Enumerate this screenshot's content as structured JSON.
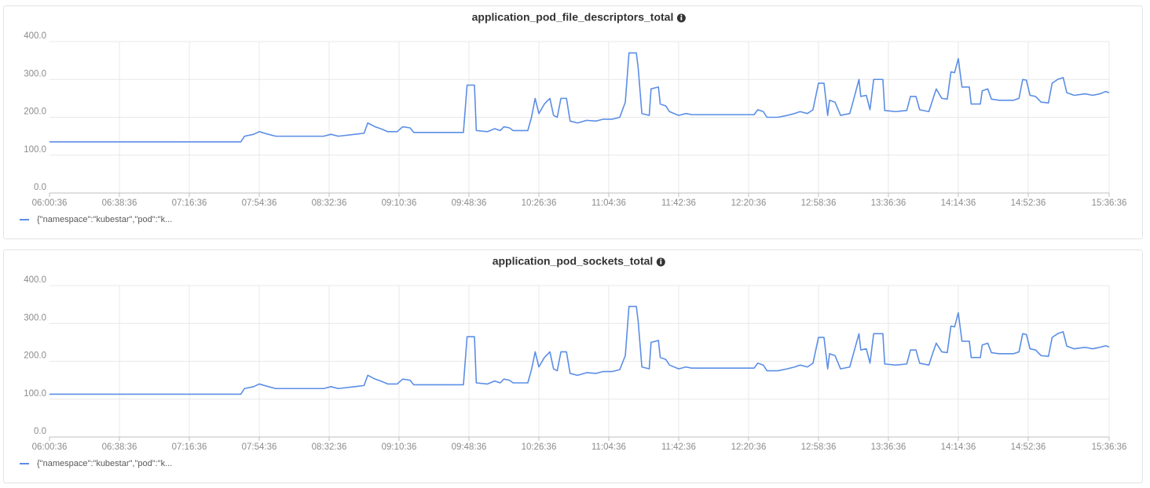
{
  "chart_data": [
    {
      "type": "line",
      "title": "application_pod_file_descriptors_total",
      "x": [
        "06:00:36",
        "07:44:36",
        "07:46:36",
        "07:51:36",
        "07:54:36",
        "07:59:36",
        "08:03:36",
        "08:12:36",
        "08:20:36",
        "08:29:36",
        "08:33:36",
        "08:37:36",
        "08:46:36",
        "08:51:36",
        "08:53:36",
        "08:57:36",
        "09:00:36",
        "09:04:36",
        "09:09:36",
        "09:12:36",
        "09:16:36",
        "09:18:36",
        "09:24:36",
        "09:33:36",
        "09:39:36",
        "09:45:36",
        "09:47:36",
        "09:51:36",
        "09:52:36",
        "09:58:36",
        "10:02:36",
        "10:05:36",
        "10:07:36",
        "10:10:36",
        "10:12:36",
        "10:20:36",
        "10:22:36",
        "10:24:36",
        "10:26:36",
        "10:29:36",
        "10:32:36",
        "10:34:36",
        "10:36:36",
        "10:38:36",
        "10:41:36",
        "10:43:36",
        "10:47:36",
        "10:52:36",
        "10:57:36",
        "11:01:36",
        "11:06:36",
        "11:10:36",
        "11:13:36",
        "11:15:36",
        "11:19:36",
        "11:20:36",
        "11:22:36",
        "11:26:36",
        "11:27:36",
        "11:31:36",
        "11:32:36",
        "11:35:36",
        "11:37:36",
        "11:42:36",
        "11:46:36",
        "11:49:36",
        "11:58:36",
        "12:11:36",
        "12:23:36",
        "12:25:36",
        "12:28:36",
        "12:30:36",
        "12:36:36",
        "12:41:36",
        "12:45:36",
        "12:48:36",
        "12:52:36",
        "12:55:36",
        "12:58:36",
        "13:01:36",
        "13:03:36",
        "13:04:36",
        "13:07:36",
        "13:10:36",
        "13:15:36",
        "13:17:36",
        "13:20:36",
        "13:21:36",
        "13:24:36",
        "13:26:36",
        "13:28:36",
        "13:33:36",
        "13:34:36",
        "13:40:36",
        "13:46:36",
        "13:48:36",
        "13:51:36",
        "13:53:36",
        "13:58:36",
        "14:00:36",
        "14:02:36",
        "14:05:36",
        "14:08:36",
        "14:10:36",
        "14:12:36",
        "14:14:36",
        "14:16:36",
        "14:20:36",
        "14:21:36",
        "14:26:36",
        "14:27:36",
        "14:30:36",
        "14:32:36",
        "14:36:36",
        "14:44:36",
        "14:47:36",
        "14:49:36",
        "14:51:36",
        "14:53:36",
        "14:56:36",
        "14:59:36",
        "15:03:36",
        "15:05:36",
        "15:08:36",
        "15:11:36",
        "15:13:36",
        "15:17:36",
        "15:23:36",
        "15:27:36",
        "15:31:36",
        "15:34:36",
        "15:36:36"
      ],
      "series": [
        {
          "name": "{\"namespace\":\"kubestar\",\"pod\":\"k...",
          "color": "#5b8ee6",
          "values": [
            135,
            135,
            150,
            155,
            162,
            155,
            150,
            150,
            150,
            150,
            155,
            150,
            155,
            158,
            185,
            175,
            170,
            162,
            162,
            175,
            172,
            160,
            160,
            160,
            160,
            160,
            285,
            285,
            165,
            162,
            170,
            165,
            175,
            172,
            165,
            165,
            200,
            250,
            210,
            235,
            250,
            205,
            200,
            250,
            250,
            190,
            185,
            192,
            190,
            195,
            195,
            200,
            240,
            370,
            370,
            330,
            210,
            205,
            275,
            280,
            235,
            230,
            215,
            205,
            210,
            207,
            207,
            207,
            207,
            220,
            215,
            200,
            200,
            205,
            210,
            215,
            210,
            220,
            290,
            290,
            205,
            245,
            240,
            205,
            210,
            245,
            300,
            255,
            258,
            220,
            300,
            300,
            218,
            215,
            218,
            255,
            255,
            220,
            215,
            245,
            275,
            250,
            248,
            320,
            318,
            355,
            280,
            280,
            235,
            235,
            270,
            275,
            248,
            245,
            245,
            250,
            300,
            298,
            258,
            255,
            240,
            238,
            290,
            300,
            305,
            265,
            258,
            262,
            258,
            262,
            268,
            265
          ]
        }
      ],
      "xlim": [
        "06:00:36",
        "15:36:36"
      ],
      "xticks": [
        "06:00:36",
        "06:38:36",
        "07:16:36",
        "07:54:36",
        "08:32:36",
        "09:10:36",
        "09:48:36",
        "10:26:36",
        "11:04:36",
        "11:42:36",
        "12:20:36",
        "12:58:36",
        "13:36:36",
        "14:14:36",
        "14:52:36",
        "15:36:36"
      ],
      "ylim": [
        0,
        400
      ],
      "yticks": [
        {
          "value": 0,
          "label": "0.0"
        },
        {
          "value": 100,
          "label": "100.0"
        },
        {
          "value": 200,
          "label": "200.0"
        },
        {
          "value": 300,
          "label": "300.0"
        },
        {
          "value": 400,
          "label": "400.0"
        }
      ],
      "grid": true,
      "legend": "bottom-left"
    },
    {
      "type": "line",
      "title": "application_pod_sockets_total",
      "x": [
        "06:00:36",
        "07:44:36",
        "07:46:36",
        "07:51:36",
        "07:54:36",
        "07:59:36",
        "08:03:36",
        "08:12:36",
        "08:20:36",
        "08:29:36",
        "08:33:36",
        "08:37:36",
        "08:46:36",
        "08:51:36",
        "08:53:36",
        "08:57:36",
        "09:00:36",
        "09:04:36",
        "09:09:36",
        "09:12:36",
        "09:16:36",
        "09:18:36",
        "09:24:36",
        "09:33:36",
        "09:39:36",
        "09:45:36",
        "09:47:36",
        "09:51:36",
        "09:52:36",
        "09:58:36",
        "10:02:36",
        "10:05:36",
        "10:07:36",
        "10:10:36",
        "10:12:36",
        "10:20:36",
        "10:22:36",
        "10:24:36",
        "10:26:36",
        "10:29:36",
        "10:32:36",
        "10:34:36",
        "10:36:36",
        "10:38:36",
        "10:41:36",
        "10:43:36",
        "10:47:36",
        "10:52:36",
        "10:57:36",
        "11:01:36",
        "11:06:36",
        "11:10:36",
        "11:13:36",
        "11:15:36",
        "11:19:36",
        "11:20:36",
        "11:22:36",
        "11:26:36",
        "11:27:36",
        "11:31:36",
        "11:32:36",
        "11:35:36",
        "11:37:36",
        "11:42:36",
        "11:46:36",
        "11:49:36",
        "11:58:36",
        "12:11:36",
        "12:23:36",
        "12:25:36",
        "12:28:36",
        "12:30:36",
        "12:36:36",
        "12:41:36",
        "12:45:36",
        "12:48:36",
        "12:52:36",
        "12:55:36",
        "12:58:36",
        "13:01:36",
        "13:03:36",
        "13:04:36",
        "13:07:36",
        "13:10:36",
        "13:15:36",
        "13:17:36",
        "13:20:36",
        "13:21:36",
        "13:24:36",
        "13:26:36",
        "13:28:36",
        "13:33:36",
        "13:34:36",
        "13:40:36",
        "13:46:36",
        "13:48:36",
        "13:51:36",
        "13:53:36",
        "13:58:36",
        "14:00:36",
        "14:02:36",
        "14:05:36",
        "14:08:36",
        "14:10:36",
        "14:12:36",
        "14:14:36",
        "14:16:36",
        "14:20:36",
        "14:21:36",
        "14:26:36",
        "14:27:36",
        "14:30:36",
        "14:32:36",
        "14:36:36",
        "14:44:36",
        "14:47:36",
        "14:49:36",
        "14:51:36",
        "14:53:36",
        "14:56:36",
        "14:59:36",
        "15:03:36",
        "15:05:36",
        "15:08:36",
        "15:11:36",
        "15:13:36",
        "15:17:36",
        "15:23:36",
        "15:27:36",
        "15:31:36",
        "15:34:36",
        "15:36:36"
      ],
      "series": [
        {
          "name": "{\"namespace\":\"kubestar\",\"pod\":\"k...",
          "color": "#5b8ee6",
          "values": [
            113,
            113,
            128,
            133,
            140,
            133,
            128,
            128,
            128,
            128,
            133,
            128,
            133,
            136,
            163,
            153,
            148,
            140,
            140,
            153,
            150,
            138,
            138,
            138,
            138,
            138,
            265,
            265,
            143,
            140,
            148,
            143,
            153,
            150,
            143,
            143,
            178,
            225,
            185,
            210,
            225,
            180,
            175,
            225,
            225,
            168,
            163,
            170,
            168,
            173,
            173,
            178,
            215,
            345,
            345,
            305,
            185,
            180,
            250,
            255,
            210,
            205,
            190,
            180,
            185,
            182,
            182,
            182,
            182,
            195,
            190,
            175,
            175,
            180,
            185,
            190,
            185,
            195,
            263,
            263,
            180,
            220,
            215,
            180,
            185,
            220,
            273,
            230,
            233,
            195,
            273,
            273,
            193,
            190,
            193,
            230,
            230,
            195,
            190,
            220,
            248,
            225,
            223,
            293,
            291,
            328,
            253,
            253,
            210,
            210,
            243,
            248,
            223,
            220,
            220,
            225,
            273,
            271,
            233,
            230,
            215,
            213,
            263,
            273,
            278,
            240,
            233,
            237,
            233,
            237,
            241,
            238
          ]
        }
      ],
      "xlim": [
        "06:00:36",
        "15:36:36"
      ],
      "xticks": [
        "06:00:36",
        "06:38:36",
        "07:16:36",
        "07:54:36",
        "08:32:36",
        "09:10:36",
        "09:48:36",
        "10:26:36",
        "11:04:36",
        "11:42:36",
        "12:20:36",
        "12:58:36",
        "13:36:36",
        "14:14:36",
        "14:52:36",
        "15:36:36"
      ],
      "ylim": [
        0,
        400
      ],
      "yticks": [
        {
          "value": 0,
          "label": "0.0"
        },
        {
          "value": 100,
          "label": "100.0"
        },
        {
          "value": 200,
          "label": "200.0"
        },
        {
          "value": 300,
          "label": "300.0"
        },
        {
          "value": 400,
          "label": "400.0"
        }
      ],
      "grid": true,
      "legend": "bottom-left"
    }
  ]
}
